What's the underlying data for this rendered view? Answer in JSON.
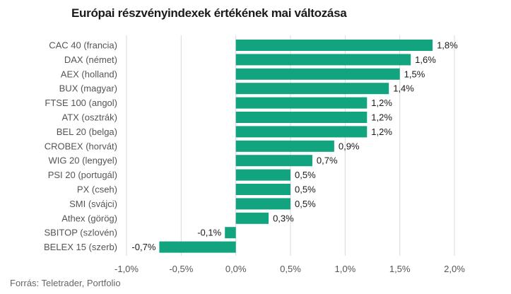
{
  "chart_data": {
    "type": "bar",
    "orientation": "horizontal",
    "title": "Európai részvényindexek értékének mai változása",
    "source": "Forrás: Teletrader, Portfolio",
    "categories": [
      "CAC 40 (francia)",
      "DAX (német)",
      "AEX (holland)",
      "BUX (magyar)",
      "FTSE 100 (angol)",
      "ATX (osztrák)",
      "BEL 20 (belga)",
      "CROBEX (horvát)",
      "WIG 20 (lengyel)",
      "PSI 20 (portugál)",
      "PX (cseh)",
      "SMI (svájci)",
      "Athex (görög)",
      "SBITOP (szlovén)",
      "BELEX 15 (szerb)"
    ],
    "values": [
      1.8,
      1.6,
      1.5,
      1.4,
      1.2,
      1.2,
      1.2,
      0.9,
      0.7,
      0.5,
      0.5,
      0.5,
      0.3,
      -0.1,
      -0.7
    ],
    "value_labels": [
      "1,8%",
      "1,6%",
      "1,5%",
      "1,4%",
      "1,2%",
      "1,2%",
      "1,2%",
      "0,9%",
      "0,7%",
      "0,5%",
      "0,5%",
      "0,5%",
      "0,3%",
      "-0,1%",
      "-0,7%"
    ],
    "xlim": [
      -1.0,
      2.0
    ],
    "xticks": [
      -1.0,
      -0.5,
      0.0,
      0.5,
      1.0,
      1.5,
      2.0
    ],
    "xtick_labels": [
      "-1,0%",
      "-0,5%",
      "0,0%",
      "0,5%",
      "1,0%",
      "1,5%",
      "2,0%"
    ],
    "grid": true,
    "bar_color": "#12a37f",
    "grid_color": "#d9d9d9"
  }
}
